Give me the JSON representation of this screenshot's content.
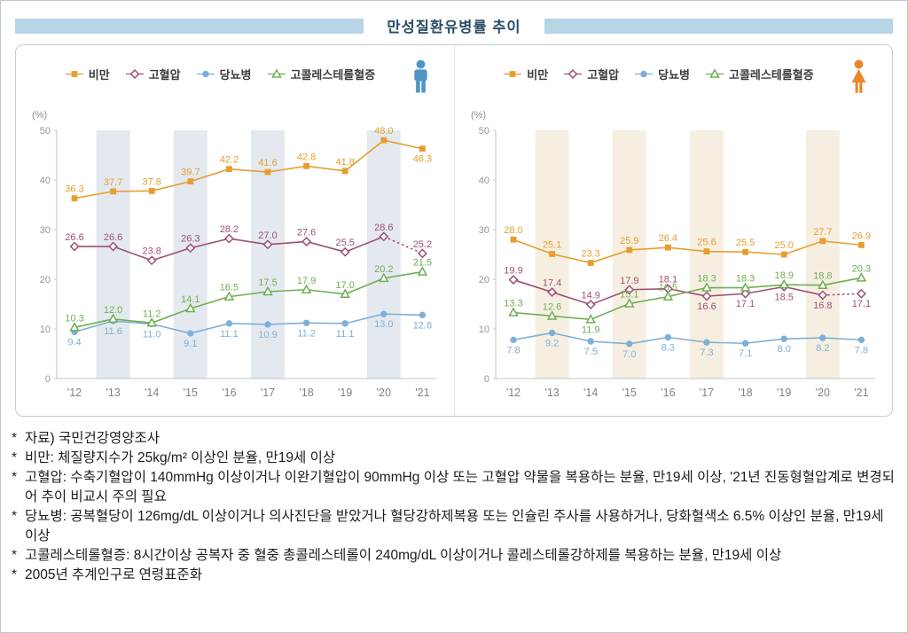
{
  "title": "만성질환유병률 추이",
  "bullet": "*",
  "colors": {
    "obesity": "#e79e2e",
    "hypertension": "#9e4f76",
    "diabetes": "#7fafd6",
    "cholesterol": "#6fae53",
    "male_icon": "#4f96c5",
    "female_icon": "#e8872e",
    "male_band": "#e4e9ef",
    "female_band": "#f6efe1",
    "title_band": "#b7d3e6"
  },
  "chart_data": [
    {
      "type": "line",
      "gender": "male",
      "unit": "(%)",
      "x": [
        "'12",
        "'13",
        "'14",
        "'15",
        "'16",
        "'17",
        "'18",
        "'19",
        "'20",
        "'21"
      ],
      "ylim": [
        0,
        50
      ],
      "y_ticks": [
        0,
        10,
        20,
        30,
        40,
        50
      ],
      "legend_position": "top",
      "grid": false,
      "series": [
        {
          "name": "비만",
          "marker": "square",
          "color_key": "obesity",
          "values": [
            36.3,
            37.7,
            37.8,
            39.7,
            42.2,
            41.6,
            42.8,
            41.8,
            48.0,
            46.3
          ]
        },
        {
          "name": "고혈압",
          "marker": "diamond",
          "color_key": "hypertension",
          "dashed_last_segment": true,
          "values": [
            26.6,
            26.6,
            23.8,
            26.3,
            28.2,
            27.0,
            27.6,
            25.5,
            28.6,
            25.2
          ]
        },
        {
          "name": "당뇨병",
          "marker": "circle",
          "color_key": "diabetes",
          "values": [
            9.4,
            11.6,
            11.0,
            9.1,
            11.1,
            10.9,
            11.2,
            11.1,
            13.0,
            12.8
          ]
        },
        {
          "name": "고콜레스테롤혈증",
          "marker": "triangle",
          "color_key": "cholesterol",
          "values": [
            10.3,
            12.0,
            11.2,
            14.1,
            16.5,
            17.5,
            17.9,
            17.0,
            20.2,
            21.5
          ]
        }
      ]
    },
    {
      "type": "line",
      "gender": "female",
      "unit": "(%)",
      "x": [
        "'12",
        "'13",
        "'14",
        "'15",
        "'16",
        "'17",
        "'18",
        "'19",
        "'20",
        "'21"
      ],
      "ylim": [
        0,
        50
      ],
      "y_ticks": [
        0,
        10,
        20,
        30,
        40,
        50
      ],
      "legend_position": "top",
      "grid": false,
      "series": [
        {
          "name": "비만",
          "marker": "square",
          "color_key": "obesity",
          "values": [
            28.0,
            25.1,
            23.3,
            25.9,
            26.4,
            25.6,
            25.5,
            25.0,
            27.7,
            26.9
          ]
        },
        {
          "name": "고혈압",
          "marker": "diamond",
          "color_key": "hypertension",
          "dashed_last_segment": true,
          "values": [
            19.9,
            17.4,
            14.9,
            17.9,
            18.1,
            16.6,
            17.1,
            18.5,
            16.8,
            17.1
          ]
        },
        {
          "name": "당뇨병",
          "marker": "circle",
          "color_key": "diabetes",
          "values": [
            7.8,
            9.2,
            7.5,
            7.0,
            8.3,
            7.3,
            7.1,
            8.0,
            8.2,
            7.8
          ]
        },
        {
          "name": "고콜레스테롤혈증",
          "marker": "triangle",
          "color_key": "cholesterol",
          "values": [
            13.3,
            12.6,
            11.9,
            15.1,
            16.5,
            18.3,
            18.3,
            18.9,
            18.8,
            20.3
          ]
        }
      ]
    }
  ],
  "footnotes": [
    "자료) 국민건강영양조사",
    "비만: 체질량지수가 25kg/m² 이상인 분율, 만19세 이상",
    "고혈압: 수축기혈압이 140mmHg 이상이거나 이완기혈압이 90mmHg 이상 또는 고혈압 약물을 복용하는 분율, 만19세 이상, '21년 진동형혈압계로 변경되어 추이 비교시 주의 필요",
    "당뇨병: 공복혈당이 126mg/dL 이상이거나 의사진단을 받았거나 혈당강하제복용 또는 인슐린 주사를 사용하거나, 당화혈색소 6.5% 이상인 분율, 만19세 이상",
    "고콜레스테롤혈증: 8시간이상 공복자 중 혈중 총콜레스테롤이 240mg/dL 이상이거나 콜레스테롤강하제를 복용하는 분율, 만19세 이상",
    "2005년 추계인구로 연령표준화"
  ]
}
